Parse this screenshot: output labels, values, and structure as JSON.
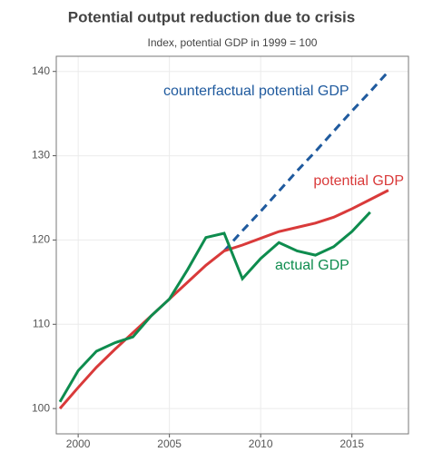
{
  "chart_data": {
    "type": "line",
    "title": "Potential output reduction due to crisis",
    "subtitle": "Index, potential GDP in 1999 = 100",
    "x": [
      1999,
      2000,
      2001,
      2002,
      2003,
      2004,
      2005,
      2006,
      2007,
      2008,
      2009,
      2010,
      2011,
      2012,
      2013,
      2014,
      2015,
      2016,
      2017
    ],
    "series": [
      {
        "name": "counterfactual potential GDP",
        "color": "#1f5a9e",
        "dashed": true,
        "values": [
          null,
          null,
          null,
          null,
          null,
          null,
          null,
          null,
          null,
          118.7,
          121.1,
          123.4,
          125.8,
          128.2,
          130.5,
          132.9,
          135.3,
          137.6,
          140.0
        ]
      },
      {
        "name": "potential GDP",
        "color": "#d93a3a",
        "values": [
          100.0,
          102.5,
          104.9,
          107.0,
          109.0,
          111.0,
          113.0,
          115.0,
          117.0,
          118.7,
          119.4,
          120.2,
          121.0,
          121.5,
          122.0,
          122.7,
          123.7,
          124.8,
          125.9
        ]
      },
      {
        "name": "actual GDP",
        "color": "#0e8c4e",
        "values": [
          100.8,
          104.5,
          106.8,
          107.8,
          108.5,
          111.0,
          113.0,
          116.5,
          120.3,
          120.8,
          115.4,
          117.8,
          119.7,
          118.7,
          118.2,
          119.2,
          121.0,
          123.3,
          null
        ]
      }
    ],
    "xlim": [
      1998.8,
      2018.1
    ],
    "xticks": [
      2000,
      2005,
      2010,
      2015
    ],
    "ylim": [
      97,
      141.8
    ],
    "yticks": [
      100,
      110,
      120,
      130,
      140
    ],
    "grid": true
  }
}
